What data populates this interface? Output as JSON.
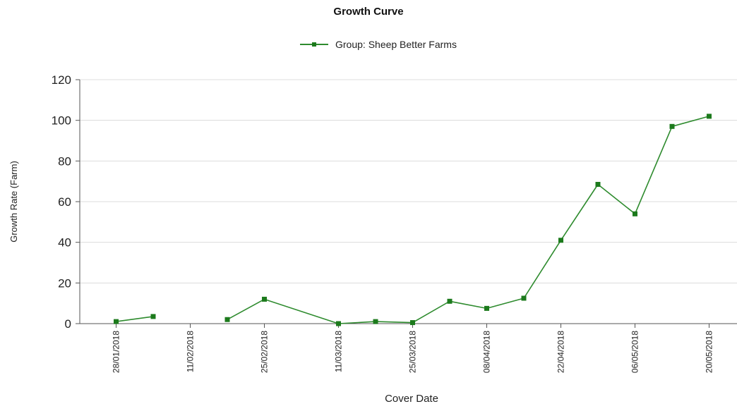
{
  "chart_data": {
    "type": "line",
    "title": "Growth Curve",
    "xlabel": "Cover Date",
    "ylabel": "Growth Rate (Farm)",
    "ylim": [
      0,
      120
    ],
    "yticks": [
      "0",
      "20",
      "40",
      "60",
      "80",
      "100",
      "120"
    ],
    "grid": "horizontal",
    "legend_position": "top-center",
    "x_tick_labels": [
      "28/01/2018",
      "11/02/2018",
      "25/02/2018",
      "11/03/2018",
      "25/03/2018",
      "08/04/2018",
      "22/04/2018",
      "06/05/2018",
      "20/05/2018"
    ],
    "series": [
      {
        "name": "Group: Sheep Better Farms",
        "color": "#2e8b2e",
        "x": [
          "28/01/2018",
          "04/02/2018",
          "18/02/2018",
          "25/02/2018",
          "11/03/2018",
          "18/03/2018",
          "25/03/2018",
          "01/04/2018",
          "08/04/2018",
          "15/04/2018",
          "22/04/2018",
          "29/04/2018",
          "06/05/2018",
          "13/05/2018",
          "20/05/2018"
        ],
        "y": [
          1,
          3.5,
          2,
          12,
          0,
          1,
          0.5,
          11,
          7.5,
          12.5,
          41,
          68.5,
          54,
          97,
          102
        ],
        "segments": [
          [
            0,
            1
          ],
          [
            2,
            14
          ]
        ]
      }
    ]
  }
}
